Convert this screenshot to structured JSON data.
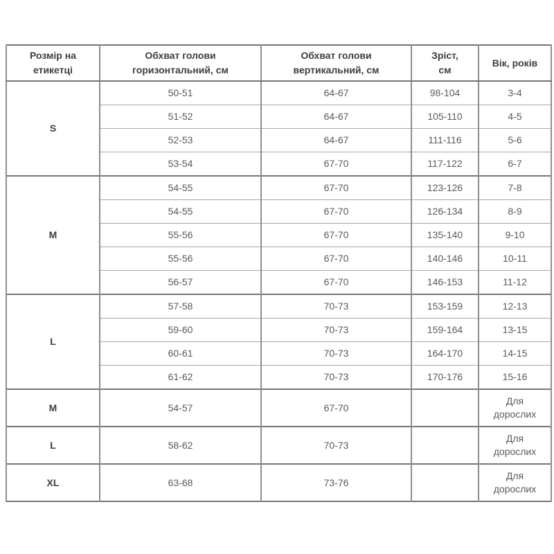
{
  "table": {
    "headers": [
      "Розмір на\nетикетці",
      "Обхват голови\nгоризонтальний, см",
      "Обхват голови\nвертикальний, см",
      "Зріст,\nсм",
      "Вік, років"
    ],
    "groups": [
      {
        "size": "S",
        "rows": [
          [
            "50-51",
            "64-67",
            "98-104",
            "3-4"
          ],
          [
            "51-52",
            "64-67",
            "105-110",
            "4-5"
          ],
          [
            "52-53",
            "64-67",
            "111-116",
            "5-6"
          ],
          [
            "53-54",
            "67-70",
            "117-122",
            "6-7"
          ]
        ]
      },
      {
        "size": "M",
        "rows": [
          [
            "54-55",
            "67-70",
            "123-126",
            "7-8"
          ],
          [
            "54-55",
            "67-70",
            "126-134",
            "8-9"
          ],
          [
            "55-56",
            "67-70",
            "135-140",
            "9-10"
          ],
          [
            "55-56",
            "67-70",
            "140-146",
            "10-11"
          ],
          [
            "56-57",
            "67-70",
            "146-153",
            "11-12"
          ]
        ]
      },
      {
        "size": "L",
        "rows": [
          [
            "57-58",
            "70-73",
            "153-159",
            "12-13"
          ],
          [
            "59-60",
            "70-73",
            "159-164",
            "13-15"
          ],
          [
            "60-61",
            "70-73",
            "164-170",
            "14-15"
          ],
          [
            "61-62",
            "70-73",
            "170-176",
            "15-16"
          ]
        ]
      },
      {
        "size": "M",
        "rows": [
          [
            "54-57",
            "67-70",
            "",
            "Для\nдорослих"
          ]
        ]
      },
      {
        "size": "L",
        "rows": [
          [
            "58-62",
            "70-73",
            "",
            "Для\nдорослих"
          ]
        ]
      },
      {
        "size": "XL",
        "rows": [
          [
            "63-68",
            "73-76",
            "",
            "Для\nдорослих"
          ]
        ]
      }
    ]
  },
  "colors": {
    "border_thick": "#747474",
    "border_thin": "#a6a6a6",
    "border_vertical": "#8d8d8d",
    "header_text": "#3d3d3d",
    "data_text": "#595959",
    "background": "#ffffff"
  },
  "chart_data": {
    "type": "table",
    "title": "",
    "columns": [
      "Розмір на етикетці",
      "Обхват голови горизонтальний, см",
      "Обхват голови вертикальний, см",
      "Зріст, см",
      "Вік, років"
    ],
    "rows": [
      [
        "S",
        "50-51",
        "64-67",
        "98-104",
        "3-4"
      ],
      [
        "S",
        "51-52",
        "64-67",
        "105-110",
        "4-5"
      ],
      [
        "S",
        "52-53",
        "64-67",
        "111-116",
        "5-6"
      ],
      [
        "S",
        "53-54",
        "67-70",
        "117-122",
        "6-7"
      ],
      [
        "M",
        "54-55",
        "67-70",
        "123-126",
        "7-8"
      ],
      [
        "M",
        "54-55",
        "67-70",
        "126-134",
        "8-9"
      ],
      [
        "M",
        "55-56",
        "67-70",
        "135-140",
        "9-10"
      ],
      [
        "M",
        "55-56",
        "67-70",
        "140-146",
        "10-11"
      ],
      [
        "M",
        "56-57",
        "67-70",
        "146-153",
        "11-12"
      ],
      [
        "L",
        "57-58",
        "70-73",
        "153-159",
        "12-13"
      ],
      [
        "L",
        "59-60",
        "70-73",
        "159-164",
        "13-15"
      ],
      [
        "L",
        "60-61",
        "70-73",
        "164-170",
        "14-15"
      ],
      [
        "L",
        "61-62",
        "70-73",
        "170-176",
        "15-16"
      ],
      [
        "M",
        "54-57",
        "67-70",
        "",
        "Для дорослих"
      ],
      [
        "L",
        "58-62",
        "70-73",
        "",
        "Для дорослих"
      ],
      [
        "XL",
        "63-68",
        "73-76",
        "",
        "Для дорослих"
      ]
    ]
  }
}
